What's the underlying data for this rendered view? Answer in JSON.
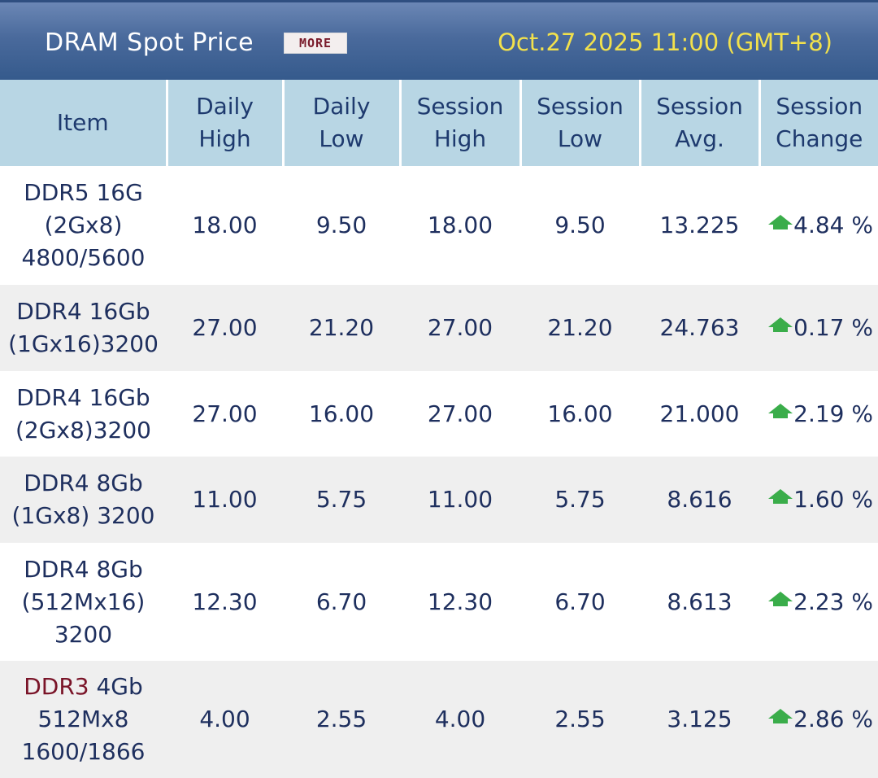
{
  "header": {
    "title": "DRAM Spot Price",
    "more_label": "MORE",
    "timestamp": "Oct.27 2025 11:00 (GMT+8)"
  },
  "columns": [
    [
      "Item"
    ],
    [
      "Daily",
      "High"
    ],
    [
      "Daily",
      "Low"
    ],
    [
      "Session",
      "High"
    ],
    [
      "Session",
      "Low"
    ],
    [
      "Session",
      "Avg."
    ],
    [
      "Session",
      "Change"
    ]
  ],
  "colors": {
    "up_arrow": "#3aad4a",
    "ddr3_label": "#7a1428",
    "header_bg": "#4a6a9c",
    "timestamp": "#f2e14c"
  },
  "rows": [
    {
      "item_prefix": "",
      "item": [
        "DDR5 16G",
        "(2Gx8)",
        "4800/5600"
      ],
      "daily_high": "18.00",
      "daily_low": "9.50",
      "session_high": "18.00",
      "session_low": "9.50",
      "session_avg": "13.225",
      "direction": "up",
      "change": "4.84 %"
    },
    {
      "item_prefix": "",
      "item": [
        "DDR4 16Gb",
        "(1Gx16)3200"
      ],
      "daily_high": "27.00",
      "daily_low": "21.20",
      "session_high": "27.00",
      "session_low": "21.20",
      "session_avg": "24.763",
      "direction": "up",
      "change": "0.17 %"
    },
    {
      "item_prefix": "",
      "item": [
        "DDR4 16Gb",
        "(2Gx8)3200"
      ],
      "daily_high": "27.00",
      "daily_low": "16.00",
      "session_high": "27.00",
      "session_low": "16.00",
      "session_avg": "21.000",
      "direction": "up",
      "change": "2.19 %"
    },
    {
      "item_prefix": "",
      "item": [
        "DDR4 8Gb",
        "(1Gx8) 3200"
      ],
      "daily_high": "11.00",
      "daily_low": "5.75",
      "session_high": "11.00",
      "session_low": "5.75",
      "session_avg": "8.616",
      "direction": "up",
      "change": "1.60 %"
    },
    {
      "item_prefix": "",
      "item": [
        "DDR4 8Gb",
        "(512Mx16)",
        "3200"
      ],
      "daily_high": "12.30",
      "daily_low": "6.70",
      "session_high": "12.30",
      "session_low": "6.70",
      "session_avg": "8.613",
      "direction": "up",
      "change": "2.23 %"
    },
    {
      "item_prefix": "DDR3",
      "item": [
        " 4Gb",
        "512Mx8",
        "1600/1866"
      ],
      "daily_high": "4.00",
      "daily_low": "2.55",
      "session_high": "4.00",
      "session_low": "2.55",
      "session_avg": "3.125",
      "direction": "up",
      "change": "2.86 %"
    }
  ]
}
